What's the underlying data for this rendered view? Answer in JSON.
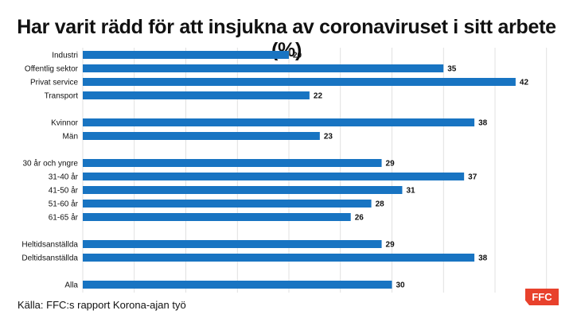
{
  "title": "Har varit rädd för att insjukna av coronaviruset i sitt arbete (%)",
  "source": "Källa: FFC:s rapport Korona-ajan työ",
  "logo": "FFC",
  "colors": {
    "bar": "#1874c2",
    "grid": "#d9d9d9",
    "logo": "#e8412c"
  },
  "chart_data": {
    "type": "bar",
    "orientation": "horizontal",
    "xlim": [
      0,
      45
    ],
    "grid": true,
    "groups": [
      {
        "categories": [
          "Industri",
          "Offentlig sektor",
          "Privat service",
          "Transport"
        ],
        "values": [
          20,
          35,
          42,
          22
        ]
      },
      {
        "categories": [
          "Kvinnor",
          "Män"
        ],
        "values": [
          38,
          23
        ]
      },
      {
        "categories": [
          "30 år och yngre",
          "31-40 år",
          "41-50 år",
          "51-60 år",
          "61-65 år"
        ],
        "values": [
          29,
          37,
          31,
          28,
          26
        ]
      },
      {
        "categories": [
          "Heltidsanställda",
          "Deltidsanställda"
        ],
        "values": [
          29,
          38
        ]
      },
      {
        "categories": [
          "Alla"
        ],
        "values": [
          30
        ]
      }
    ]
  }
}
